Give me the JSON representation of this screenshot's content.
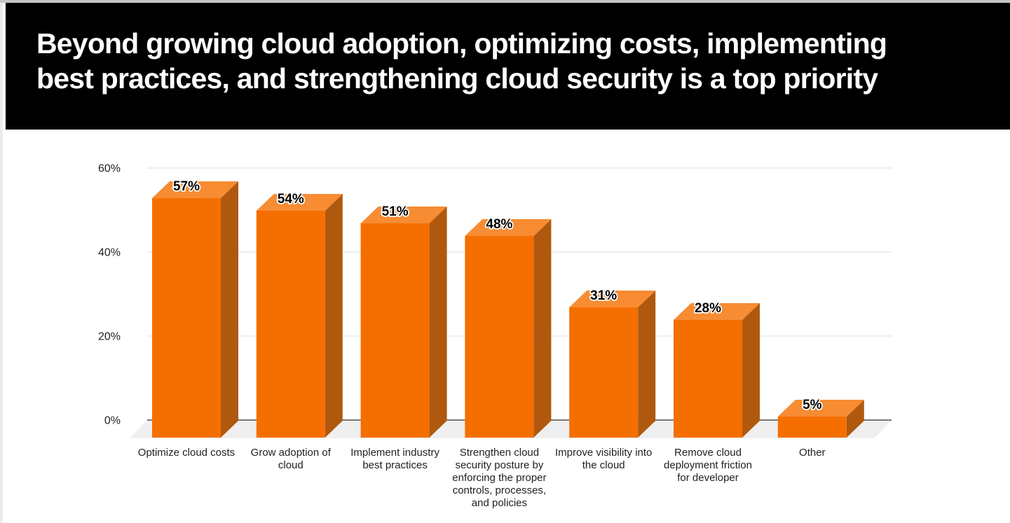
{
  "header": {
    "title": "Beyond growing cloud adoption, optimizing costs, implementing best practices, and strengthening cloud security is a top priority",
    "title_lines": [
      "Beyond growing cloud adoption, optimizing costs, implementing",
      "best practices, and strengthening cloud security is a top priority"
    ],
    "background": "#000000",
    "text_color": "#ffffff"
  },
  "chart_data": {
    "type": "bar",
    "style": "3d-column",
    "title": "",
    "xlabel": "",
    "ylabel": "",
    "ylim": [
      0,
      60
    ],
    "grid": true,
    "legend": false,
    "categories": [
      "Optimize cloud costs",
      "Grow adoption of cloud",
      "Implement industry best practices",
      "Strengthen cloud security posture by enforcing the proper controls, processes, and policies",
      "Improve visibility into the cloud",
      "Remove cloud deployment friction for developer",
      "Other"
    ],
    "category_lines": [
      [
        "Optimize cloud costs"
      ],
      [
        "Grow adoption of",
        "cloud"
      ],
      [
        "Implement industry",
        "best practices"
      ],
      [
        "Strengthen cloud",
        "security posture by",
        "enforcing the proper",
        "controls, processes,",
        "and policies"
      ],
      [
        "Improve visibility into",
        "the cloud"
      ],
      [
        "Remove cloud",
        "deployment friction",
        "for developer"
      ],
      [
        "Other"
      ]
    ],
    "values": [
      57,
      54,
      51,
      48,
      31,
      28,
      5
    ],
    "value_labels": [
      "57%",
      "54%",
      "51%",
      "48%",
      "31%",
      "28%",
      "5%"
    ],
    "y_ticks": [
      {
        "value": 0,
        "label": "0%"
      },
      {
        "value": 20,
        "label": "20%"
      },
      {
        "value": 40,
        "label": "40%"
      },
      {
        "value": 60,
        "label": "60%"
      }
    ],
    "colors": {
      "bar_front": "#f56f00",
      "bar_top": "#f78c33",
      "bar_side": "#b0590e",
      "floor": "#efefef",
      "gridline": "#dcdcdc",
      "zero_line": "#7a7a7a",
      "tick_label": "#212121",
      "category_label": "#212121",
      "value_label": "#000000",
      "value_label_halo": "#ffffff"
    }
  }
}
